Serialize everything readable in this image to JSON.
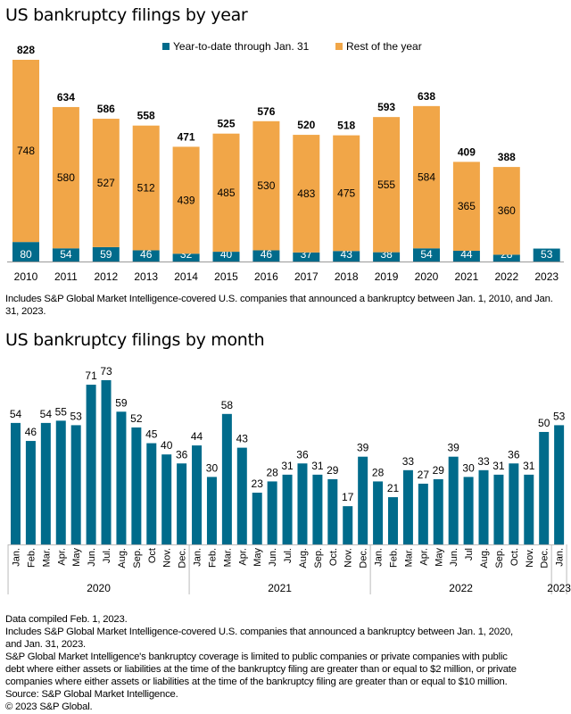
{
  "colors": {
    "ytd": "#006b8b",
    "rest": "#f1a648"
  },
  "chart_data": [
    {
      "type": "bar",
      "stacked": true,
      "title": "US bankruptcy filings by year",
      "categories": [
        "2010",
        "2011",
        "2012",
        "2013",
        "2014",
        "2015",
        "2016",
        "2017",
        "2018",
        "2019",
        "2020",
        "2021",
        "2022",
        "2023"
      ],
      "series": [
        {
          "name": "Year-to-date through Jan. 31",
          "values": [
            80,
            54,
            59,
            46,
            32,
            40,
            46,
            37,
            43,
            38,
            54,
            44,
            28,
            53
          ]
        },
        {
          "name": "Rest of the year",
          "values": [
            748,
            580,
            527,
            512,
            439,
            485,
            530,
            483,
            475,
            555,
            584,
            365,
            360,
            null
          ]
        }
      ],
      "totals": [
        828,
        634,
        586,
        558,
        471,
        525,
        576,
        520,
        518,
        593,
        638,
        409,
        388,
        null
      ],
      "legend": "top-center",
      "ylim": [
        0,
        828
      ],
      "note": "Includes S&P Global Market Intelligence-covered U.S. companies that announced a bankruptcy between Jan. 1, 2010, and Jan. 31, 2023."
    },
    {
      "type": "bar",
      "title": "US bankruptcy filings by month",
      "categories": [
        "Jan.",
        "Feb.",
        "Mar.",
        "Apr.",
        "May",
        "Jun.",
        "Jul.",
        "Aug.",
        "Sep.",
        "Oct",
        "Nov.",
        "Dec.",
        "Jan.",
        "Feb.",
        "Mar.",
        "Apr.",
        "May",
        "Jun.",
        "Jul.",
        "Aug.",
        "Sep.",
        "Oct.",
        "Nov.",
        "Dec.",
        "Jan.",
        "Feb.",
        "Mar.",
        "Apr.",
        "May",
        "Jun.",
        "Jul",
        "Aug.",
        "Sep.",
        "Oct.",
        "Nov.",
        "Dec.",
        "Jan."
      ],
      "groups": [
        {
          "label": "2020",
          "count": 12
        },
        {
          "label": "2021",
          "count": 12
        },
        {
          "label": "2022",
          "count": 12
        },
        {
          "label": "2023",
          "count": 1
        }
      ],
      "values": [
        54,
        46,
        54,
        55,
        53,
        71,
        73,
        59,
        52,
        45,
        40,
        36,
        44,
        30,
        58,
        43,
        23,
        28,
        31,
        36,
        31,
        29,
        17,
        39,
        28,
        21,
        33,
        27,
        29,
        39,
        30,
        33,
        31,
        36,
        31,
        50,
        53
      ],
      "ylim": [
        0,
        73
      ]
    }
  ],
  "footnotes": [
    "Data compiled Feb. 1, 2023.",
    "Includes S&P Global Market Intelligence-covered U.S. companies that announced a bankruptcy between Jan. 1, 2020,",
    "and Jan. 31, 2023.",
    "S&P Global Market Intelligence's bankruptcy coverage is limited to public companies or private companies with public",
    "debt where either assets or liabilities at the time of the bankruptcy filing are greater than or equal to $2 million, or private",
    "companies where either assets or liabilities at the time of the bankruptcy filing are greater than or equal to $10 million.",
    "Source: S&P Global Market Intelligence.",
    "© 2023 S&P Global."
  ]
}
